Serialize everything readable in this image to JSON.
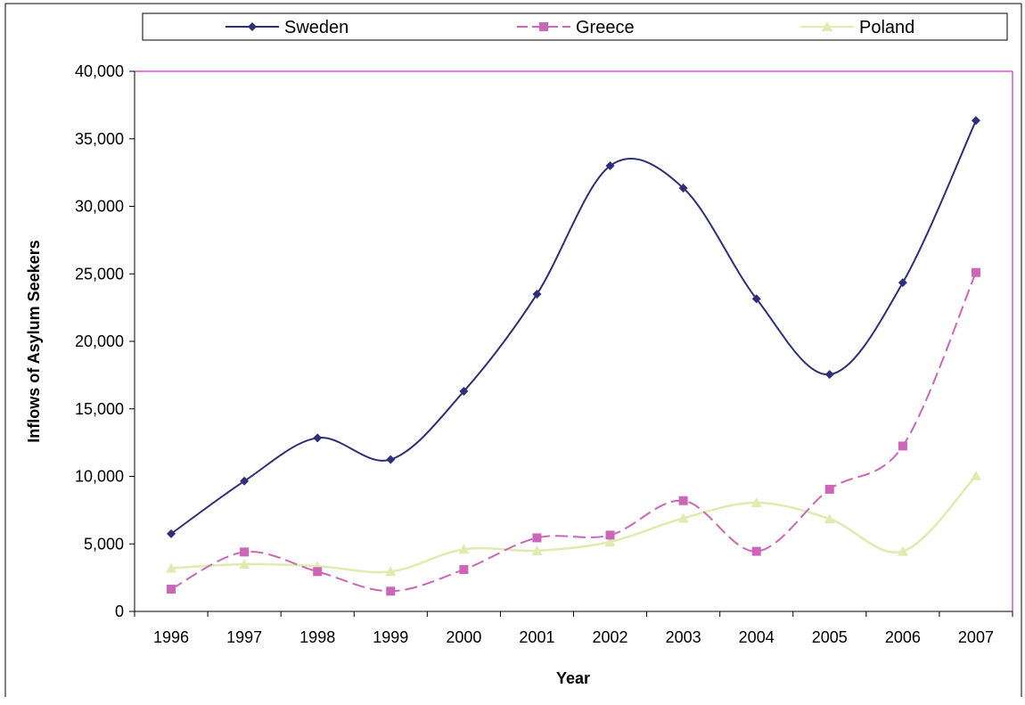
{
  "chart_data": {
    "type": "line",
    "title": "",
    "xlabel": "Year",
    "ylabel": "Inflows of Asylum Seekers",
    "categories": [
      "1996",
      "1997",
      "1998",
      "1999",
      "2000",
      "2001",
      "2002",
      "2003",
      "2004",
      "2005",
      "2006",
      "2007"
    ],
    "ylim": [
      0,
      40000
    ],
    "yticks": [
      0,
      5000,
      10000,
      15000,
      20000,
      25000,
      30000,
      35000,
      40000
    ],
    "ytick_labels": [
      "0",
      "5,000",
      "10,000",
      "15,000",
      "20,000",
      "25,000",
      "30,000",
      "35,000",
      "40,000"
    ],
    "grid": false,
    "legend_position": "top",
    "series": [
      {
        "name": "Sweden",
        "color": "#2e2e7a",
        "marker": "diamond",
        "dash": "solid",
        "values": [
          5750,
          9650,
          12850,
          11250,
          16300,
          23500,
          33000,
          31350,
          23150,
          17550,
          24350,
          36350
        ]
      },
      {
        "name": "Greece",
        "color": "#cc66b8",
        "marker": "square",
        "dash": "dashed",
        "values": [
          1650,
          4400,
          2950,
          1500,
          3100,
          5450,
          5650,
          8200,
          4450,
          9050,
          12250,
          25100
        ]
      },
      {
        "name": "Poland",
        "color": "#e0ebb0",
        "marker": "triangle",
        "dash": "solid",
        "values": [
          3200,
          3500,
          3350,
          2950,
          4600,
          4500,
          5150,
          6900,
          8050,
          6850,
          4450,
          10050
        ]
      }
    ]
  }
}
